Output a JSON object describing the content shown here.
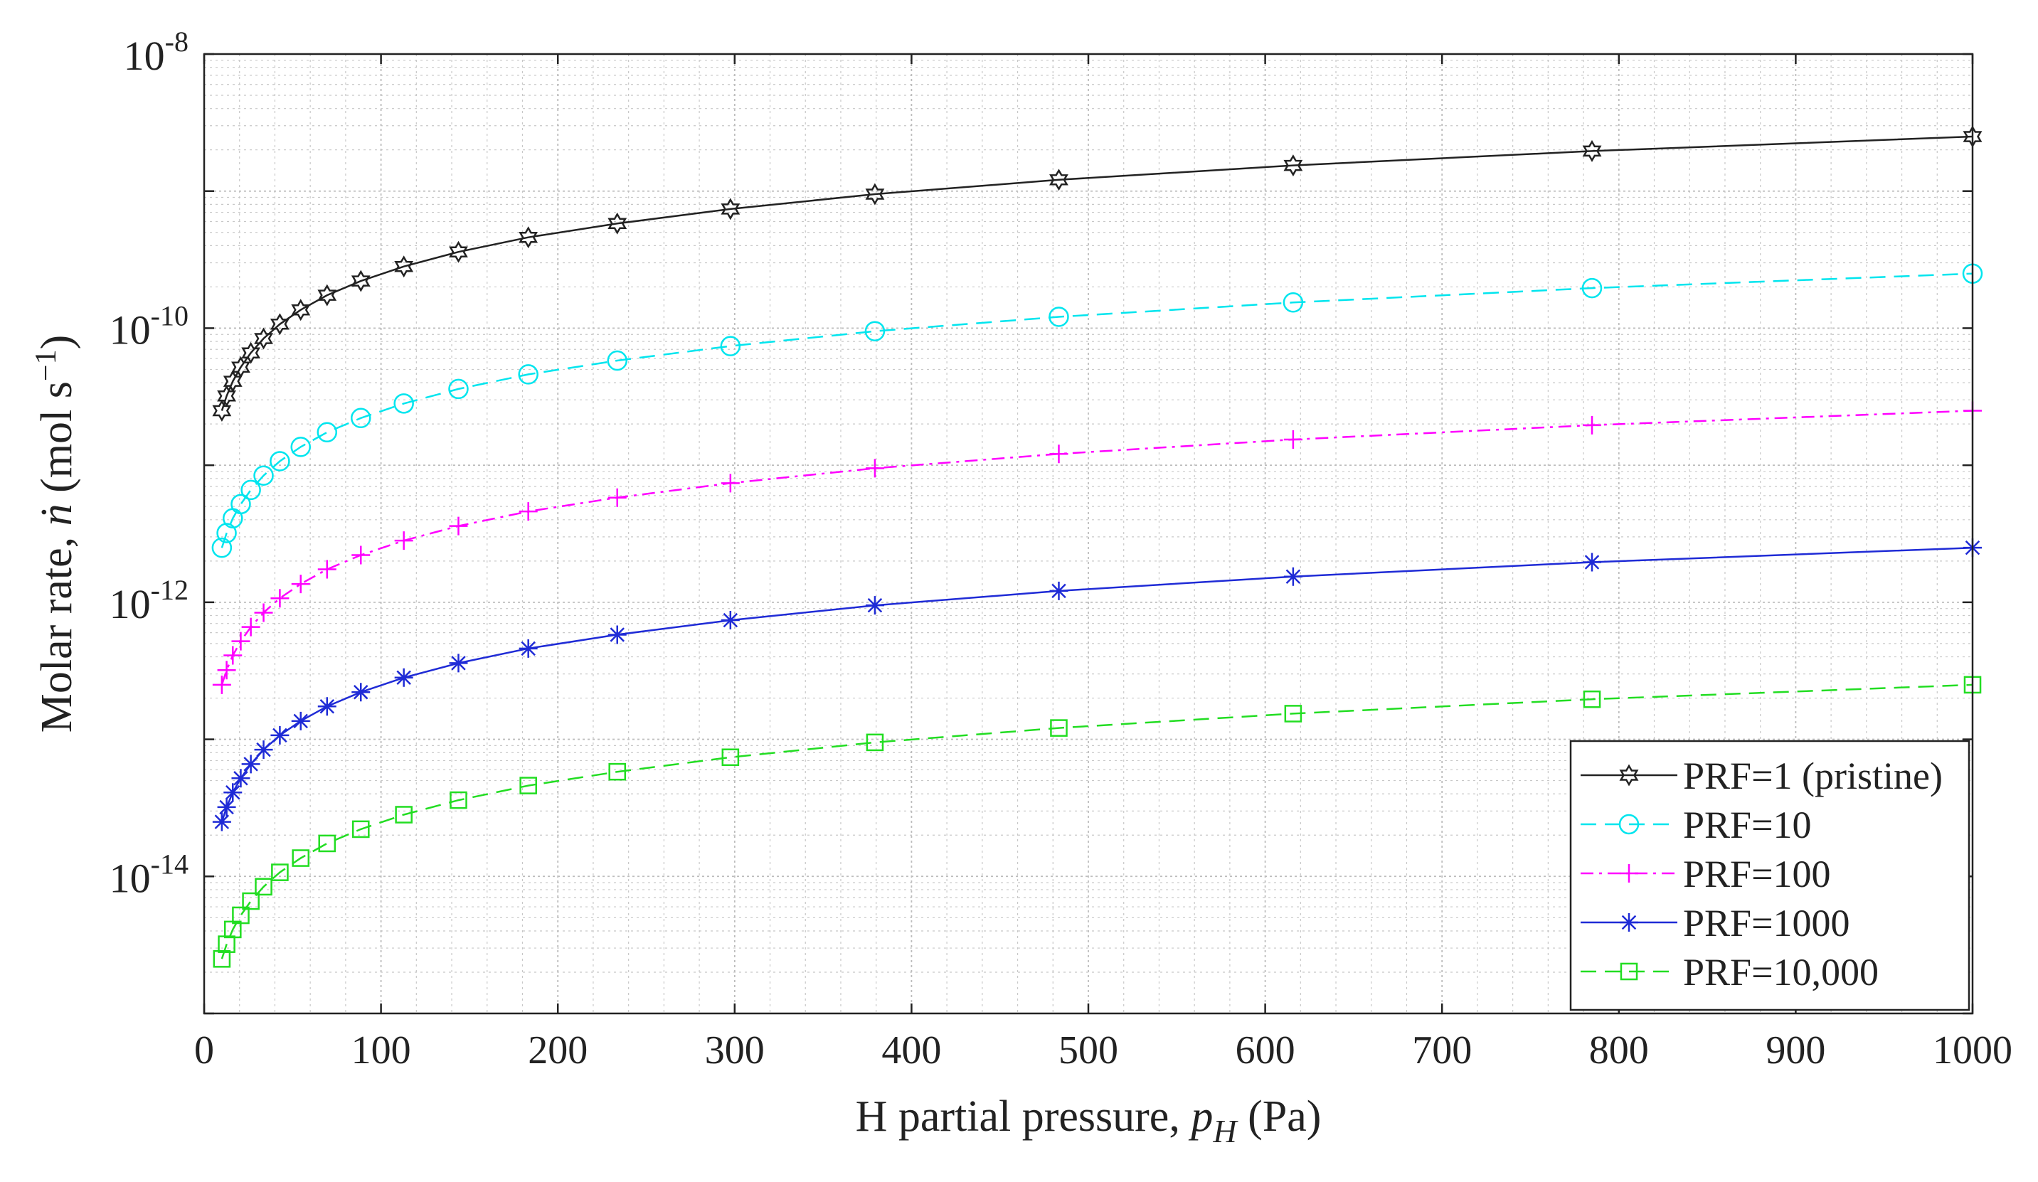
{
  "chart_data": {
    "type": "line",
    "title": "",
    "xlabel": {
      "prefix": "H partial pressure, ",
      "symbol": "p",
      "subscript": "H",
      "suffix": " (Pa)"
    },
    "ylabel": {
      "prefix": "Molar rate, ",
      "symbol": "ṅ",
      "unit_open": " (mol s",
      "unit_exp": "−1",
      "unit_close": ")"
    },
    "xscale": "linear",
    "yscale": "log",
    "xlim": [
      0,
      1000
    ],
    "ylim": [
      1e-15,
      1e-08
    ],
    "grid": true,
    "minor_grid": true,
    "legend_position": "bottom-right",
    "x_ticks": [
      0,
      100,
      200,
      300,
      400,
      500,
      600,
      700,
      800,
      900,
      1000
    ],
    "x_tick_labels": [
      "0",
      "100",
      "200",
      "300",
      "400",
      "500",
      "600",
      "700",
      "800",
      "900",
      "1000"
    ],
    "y_ticks": [
      {
        "value": 1e-08,
        "base": "10",
        "exp": "-8"
      },
      {
        "value": 1e-10,
        "base": "10",
        "exp": "-10"
      },
      {
        "value": 1e-12,
        "base": "10",
        "exp": "-12"
      },
      {
        "value": 1e-14,
        "base": "10",
        "exp": "-14"
      }
    ],
    "x": [
      10,
      12.7,
      16.2,
      20.7,
      26.4,
      33.6,
      42.8,
      54.6,
      69.5,
      88.6,
      112.9,
      143.8,
      183.3,
      233.6,
      297.6,
      379.3,
      483.3,
      615.8,
      784.8,
      1000
    ],
    "series": [
      {
        "name": "PRF=1 (pristine)",
        "color": "#222222",
        "dash": "",
        "marker": "hexagram",
        "values": [
          2.5e-11,
          3.2e-11,
          4.1e-11,
          5.2e-11,
          6.6e-11,
          8.4e-11,
          1.07e-10,
          1.36e-10,
          1.74e-10,
          2.21e-10,
          2.82e-10,
          3.6e-10,
          4.6e-10,
          5.8e-10,
          7.4e-10,
          9.5e-10,
          1.21e-09,
          1.54e-09,
          1.96e-09,
          2.5e-09
        ]
      },
      {
        "name": "PRF=10",
        "color": "#00e5ee",
        "dash": "22,12",
        "marker": "circle",
        "values": [
          2.5e-12,
          3.2e-12,
          4.1e-12,
          5.2e-12,
          6.6e-12,
          8.4e-12,
          1.07e-11,
          1.36e-11,
          1.74e-11,
          2.21e-11,
          2.82e-11,
          3.6e-11,
          4.6e-11,
          5.8e-11,
          7.4e-11,
          9.5e-11,
          1.21e-10,
          1.54e-10,
          1.96e-10,
          2.5e-10
        ]
      },
      {
        "name": "PRF=100",
        "color": "#ff00ff",
        "dash": "18,8,4,8",
        "marker": "plus",
        "values": [
          2.5e-13,
          3.2e-13,
          4.1e-13,
          5.2e-13,
          6.6e-13,
          8.4e-13,
          1.07e-12,
          1.36e-12,
          1.74e-12,
          2.21e-12,
          2.82e-12,
          3.6e-12,
          4.6e-12,
          5.8e-12,
          7.4e-12,
          9.5e-12,
          1.21e-11,
          1.54e-11,
          1.96e-11,
          2.5e-11
        ]
      },
      {
        "name": "PRF=1000",
        "color": "#1f2bd6",
        "dash": "",
        "marker": "asterisk",
        "values": [
          2.5e-14,
          3.2e-14,
          4.1e-14,
          5.2e-14,
          6.6e-14,
          8.4e-14,
          1.07e-13,
          1.36e-13,
          1.74e-13,
          2.21e-13,
          2.82e-13,
          3.6e-13,
          4.6e-13,
          5.8e-13,
          7.4e-13,
          9.5e-13,
          1.21e-12,
          1.54e-12,
          1.96e-12,
          2.5e-12
        ]
      },
      {
        "name": "PRF=10,000",
        "color": "#22dd22",
        "dash": "22,12",
        "marker": "square",
        "values": [
          2.5e-15,
          3.2e-15,
          4.1e-15,
          5.2e-15,
          6.6e-15,
          8.4e-15,
          1.07e-14,
          1.36e-14,
          1.74e-14,
          2.21e-14,
          2.82e-14,
          3.6e-14,
          4.6e-14,
          5.8e-14,
          7.4e-14,
          9.5e-14,
          1.21e-13,
          1.54e-13,
          1.96e-13,
          2.5e-13
        ]
      }
    ]
  }
}
